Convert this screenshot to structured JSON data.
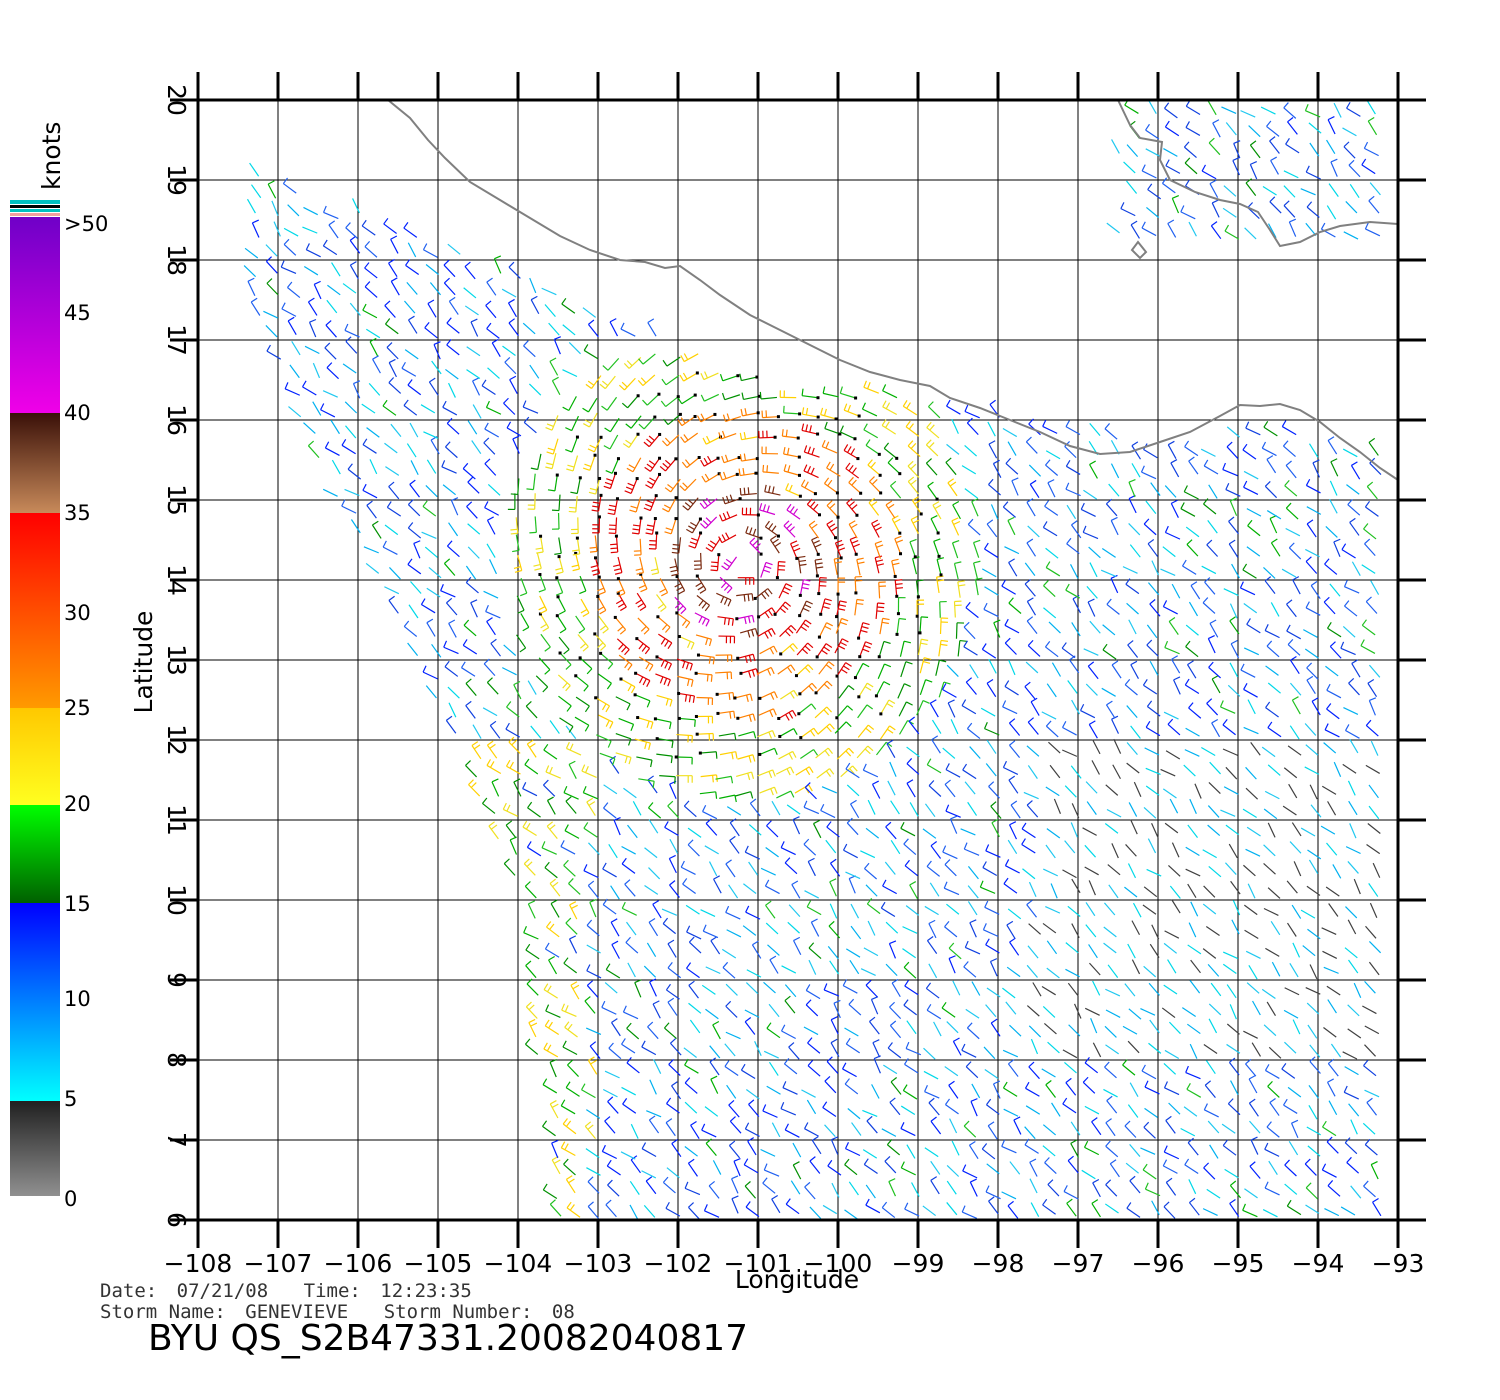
{
  "colorbar": {
    "unit": "knots",
    "labels": [
      ">50",
      "45",
      "40",
      "35",
      "30",
      "25",
      "20",
      "15",
      "10",
      "5",
      "0"
    ],
    "segments": [
      {
        "from": 50,
        "to": 40,
        "color_top": "#6f00c8",
        "color_bottom": "#f000e8"
      },
      {
        "from": 40,
        "to": 35,
        "color_top": "#3a1008",
        "color_bottom": "#c88a5a"
      },
      {
        "from": 35,
        "to": 25,
        "color_top": "#ff0000",
        "color_bottom": "#ff9a00"
      },
      {
        "from": 25,
        "to": 20,
        "color_top": "#ffc800",
        "color_bottom": "#ffff20"
      },
      {
        "from": 20,
        "to": 15,
        "color_top": "#00ff00",
        "color_bottom": "#006000"
      },
      {
        "from": 15,
        "to": 5,
        "color_top": "#0000ff",
        "color_bottom": "#00ffff"
      },
      {
        "from": 5,
        "to": 0,
        "color_top": "#202020",
        "color_bottom": "#909090"
      }
    ],
    "cap_colors": [
      "#00c0c0",
      "#000000",
      "#f0a0a0"
    ]
  },
  "map": {
    "x_axis_label": "Longitude",
    "y_axis_label": "Latitude",
    "lon_range": [
      -108,
      -93
    ],
    "lat_range": [
      6,
      20
    ],
    "lon_ticks": [
      "−108",
      "−107",
      "−106",
      "−105",
      "−104",
      "−103",
      "−102",
      "−101",
      "−100",
      "−99",
      "−98",
      "−97",
      "−96",
      "−95",
      "−94",
      "−93"
    ],
    "lat_ticks": [
      "6",
      "7",
      "8",
      "9",
      "10",
      "11",
      "12",
      "13",
      "14",
      "15",
      "16",
      "17",
      "18",
      "19",
      "20"
    ],
    "grid": true,
    "coast_color": "#808080",
    "storm_center": {
      "lon": -101.2,
      "lat": 14.2
    }
  },
  "footer": {
    "date_label": "Date:",
    "date": "07/21/08",
    "time_label": "Time:",
    "time": "12:23:35",
    "storm_name_label": "Storm  Name:",
    "storm_name": "GENEVIEVE",
    "storm_number_label": "Storm  Number:",
    "storm_number": "08",
    "product_id": "BYU  QS_S2B47331.20082040817"
  }
}
